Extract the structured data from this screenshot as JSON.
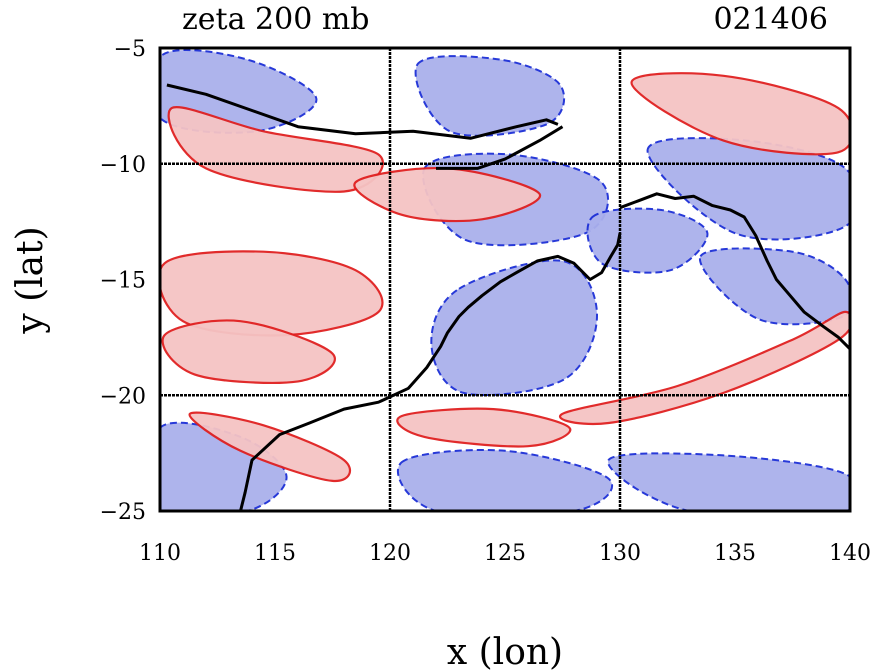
{
  "chart_data": {
    "type": "contour-map",
    "title_left": "zeta 200 mb",
    "title_right": "021406",
    "xlabel": "x (lon)",
    "ylabel": "y (lat)",
    "xlim": [
      110,
      140
    ],
    "ylim": [
      -25,
      -5
    ],
    "xticks": [
      110,
      115,
      120,
      125,
      130,
      135,
      140
    ],
    "yticks": [
      -5,
      -10,
      -15,
      -20,
      -25
    ],
    "xtick_labels": [
      "110",
      "115",
      "120",
      "125",
      "130",
      "135",
      "140"
    ],
    "ytick_labels": [
      "−5",
      "−10",
      "−15",
      "−20",
      "−25"
    ],
    "grid_lon": [
      120,
      130
    ],
    "grid_lat": [
      -10,
      -20
    ],
    "positive_color": "#e02020",
    "positive_fill": "#f5c4c4",
    "negative_color": "#1c2fd6",
    "negative_fill": "#aab0ec",
    "coast_color": "#000000",
    "positive_regions": [
      {
        "name": "north-band-west",
        "lon": [
          110.5,
          114.5,
          119.5,
          118.0,
          112.0
        ],
        "lat": [
          -7.6,
          -8.6,
          -9.6,
          -11.2,
          -10.2
        ]
      },
      {
        "name": "timor-sea-band",
        "lon": [
          118.5,
          122.5,
          126.5,
          124.0,
          120.5
        ],
        "lat": [
          -10.8,
          -10.2,
          -11.3,
          -12.4,
          -12.2
        ]
      },
      {
        "name": "mid-west-patch",
        "lon": [
          110.2,
          114.5,
          118.5,
          119.5,
          115.5,
          111.0
        ],
        "lat": [
          -14.3,
          -13.8,
          -14.6,
          -16.4,
          -17.4,
          -16.8
        ]
      },
      {
        "name": "southwest-tongue",
        "lon": [
          110.2,
          113.5,
          117.5,
          116.0,
          111.5
        ],
        "lat": [
          -17.4,
          -16.8,
          -18.2,
          -19.4,
          -19.1
        ]
      },
      {
        "name": "upper-right-band",
        "lon": [
          130.5,
          134.5,
          139.5,
          139.5,
          134.5
        ],
        "lat": [
          -6.5,
          -6.2,
          -7.6,
          -9.5,
          -9.0
        ]
      },
      {
        "name": "se-diagonal-band",
        "lon": [
          127.5,
          132.5,
          137.5,
          139.8,
          139.5,
          134.5,
          129.5
        ],
        "lat": [
          -20.8,
          -19.6,
          -17.6,
          -16.4,
          -17.6,
          -19.9,
          -21.2
        ]
      },
      {
        "name": "sw-lower-band",
        "lon": [
          111.3,
          114.5,
          118.0,
          117.5,
          113.5
        ],
        "lat": [
          -20.8,
          -21.3,
          -22.8,
          -23.7,
          -22.4
        ]
      },
      {
        "name": "center-south-strip",
        "lon": [
          120.5,
          124.5,
          127.8,
          126.0,
          121.5
        ],
        "lat": [
          -20.9,
          -20.6,
          -21.4,
          -22.2,
          -21.8
        ]
      }
    ],
    "negative_regions": [
      {
        "name": "west-north-shade",
        "lon": [
          110.1,
          113.8,
          116.8,
          114.2,
          110.1
        ],
        "lat": [
          -5.3,
          -5.5,
          -7.2,
          -8.6,
          -8.1
        ]
      },
      {
        "name": "upper-center-shade",
        "lon": [
          121.2,
          124.8,
          127.4,
          126.8,
          122.6
        ],
        "lat": [
          -5.7,
          -5.5,
          -6.6,
          -8.3,
          -8.6
        ]
      },
      {
        "name": "central-north-shade",
        "lon": [
          121.5,
          125.2,
          129.2,
          128.5,
          123.3
        ],
        "lat": [
          -10.2,
          -9.6,
          -10.8,
          -13.0,
          -13.3
        ]
      },
      {
        "name": "central-large-shade",
        "lon": [
          123.0,
          127.5,
          129.0,
          127.6,
          123.2,
          121.8
        ],
        "lat": [
          -15.4,
          -14.2,
          -16.5,
          -19.3,
          -19.9,
          -17.8
        ]
      },
      {
        "name": "northeast-shade",
        "lon": [
          131.2,
          135.5,
          139.8,
          139.8,
          135.0
        ],
        "lat": [
          -9.4,
          -9.0,
          -10.2,
          -12.7,
          -13.0
        ]
      },
      {
        "name": "east-mid-shade",
        "lon": [
          133.5,
          137.5,
          139.8,
          139.7,
          136.0
        ],
        "lat": [
          -14.0,
          -13.8,
          -15.0,
          -16.6,
          -16.7
        ]
      },
      {
        "name": "southwest-big-shade",
        "lon": [
          110.0,
          113.5,
          115.5,
          113.8,
          110.0
        ],
        "lat": [
          -21.4,
          -21.8,
          -23.5,
          -25.0,
          -25.0
        ]
      },
      {
        "name": "south-center-shade",
        "lon": [
          120.5,
          125.0,
          129.5,
          128.0,
          122.0
        ],
        "lat": [
          -22.9,
          -22.4,
          -23.6,
          -25.0,
          -25.0
        ]
      },
      {
        "name": "southeast-shade",
        "lon": [
          129.5,
          134.5,
          139.8,
          139.8,
          133.0
        ],
        "lat": [
          -22.8,
          -22.6,
          -23.4,
          -25.0,
          -25.0
        ]
      },
      {
        "name": "arafura-shade",
        "lon": [
          128.8,
          131.8,
          133.8,
          132.2,
          129.2
        ],
        "lat": [
          -12.3,
          -12.0,
          -13.0,
          -14.6,
          -14.3
        ]
      }
    ],
    "coastlines": [
      {
        "name": "western-australia-coast",
        "lon": [
          113.5,
          113.7,
          114.0,
          115.2,
          116.5,
          118.0,
          119.5,
          120.8,
          121.6,
          122.2,
          122.5,
          123.0,
          123.4,
          124.0,
          124.8,
          125.5,
          126.4,
          127.3,
          128.0,
          128.7,
          129.2,
          129.6,
          129.9,
          130.0
        ],
        "lat": [
          -25.0,
          -24.2,
          -22.8,
          -21.7,
          -21.2,
          -20.6,
          -20.3,
          -19.7,
          -18.8,
          -17.9,
          -17.3,
          -16.6,
          -16.2,
          -15.7,
          -15.1,
          -14.7,
          -14.2,
          -14.0,
          -14.3,
          -15.0,
          -14.7,
          -14.0,
          -13.5,
          -13.0
        ]
      },
      {
        "name": "northern-territory-coast",
        "lon": [
          130.0,
          130.8,
          131.6,
          132.4,
          133.2,
          134.0,
          134.8,
          135.4,
          135.9,
          136.4,
          136.8,
          137.4,
          138.0,
          138.8,
          139.5,
          140.0
        ],
        "lat": [
          -11.9,
          -11.6,
          -11.3,
          -11.5,
          -11.4,
          -11.8,
          -12.0,
          -12.3,
          -13.1,
          -14.2,
          -15.0,
          -15.7,
          -16.4,
          -17.0,
          -17.5,
          -18.0
        ]
      },
      {
        "name": "indonesia-islands",
        "lon": [
          110.3,
          112.0,
          114.0,
          116.0,
          118.5,
          121.0,
          123.5,
          125.5,
          126.8,
          127.3
        ],
        "lat": [
          -6.6,
          -7.0,
          -7.7,
          -8.4,
          -8.7,
          -8.6,
          -8.9,
          -8.4,
          -8.1,
          -8.3
        ]
      },
      {
        "name": "timor-outline",
        "lon": [
          122.0,
          123.8,
          125.0,
          126.5,
          127.5
        ],
        "lat": [
          -10.2,
          -10.2,
          -9.8,
          -9.0,
          -8.4
        ]
      }
    ]
  }
}
